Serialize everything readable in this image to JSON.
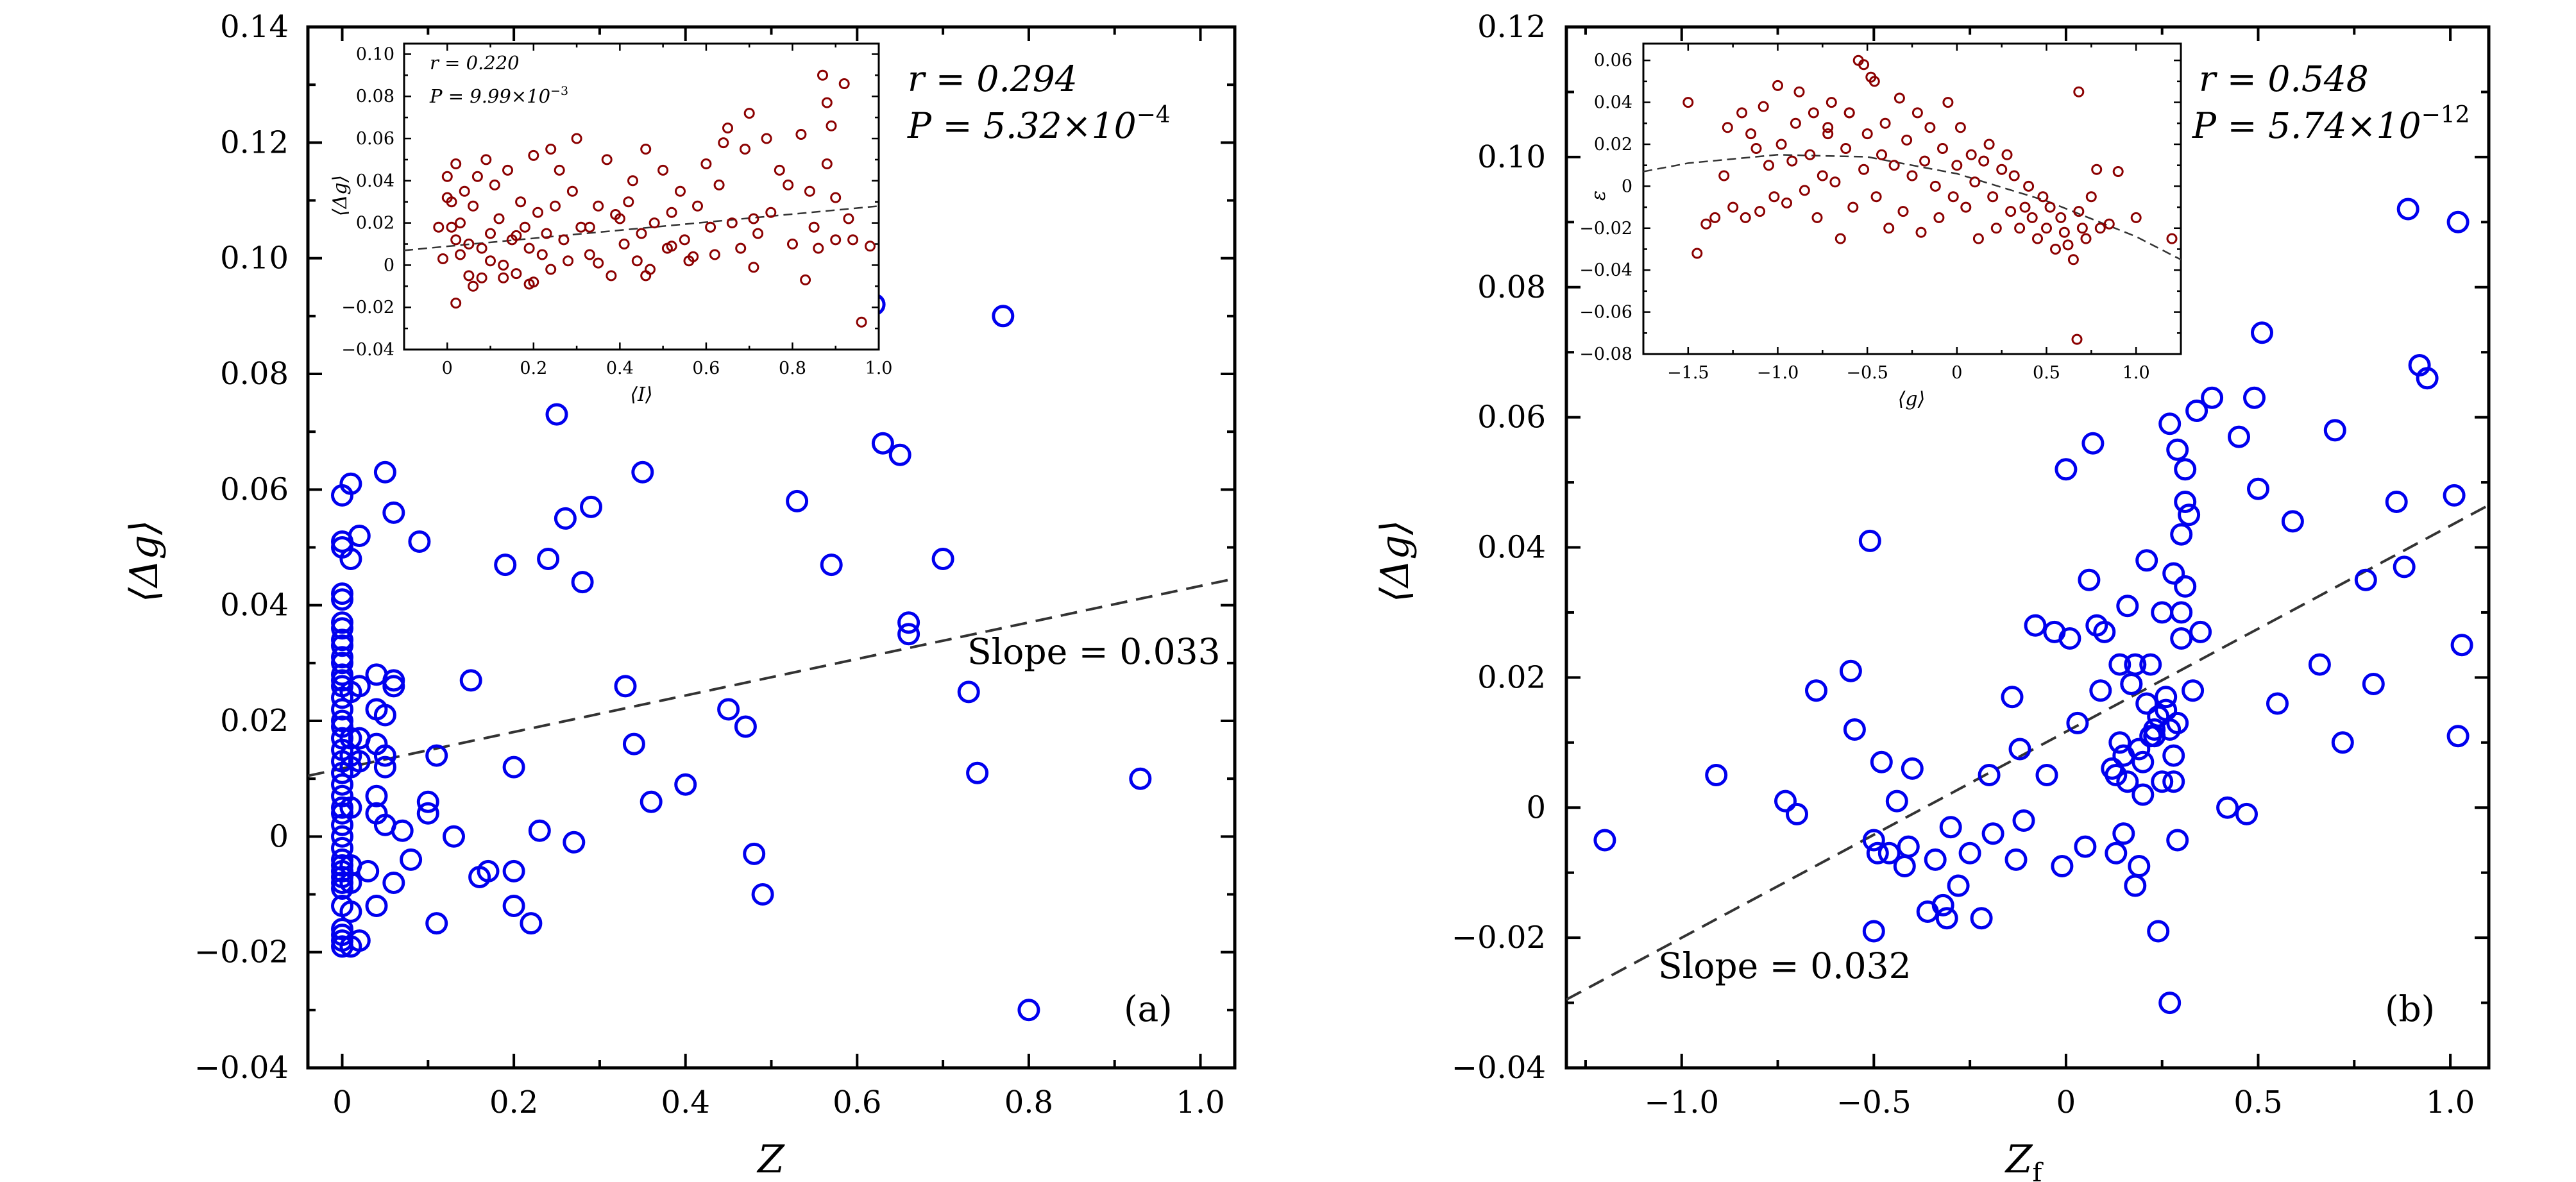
{
  "chart_data": [
    {
      "panel": "(a)",
      "type": "scatter",
      "xlabel": "Z",
      "ylabel": "⟨Δg⟩",
      "xlim": [
        -0.04,
        1.04
      ],
      "ylim": [
        -0.04,
        0.14
      ],
      "xticks": [
        0,
        0.2,
        0.4,
        0.6,
        0.8,
        1.0
      ],
      "xtick_labels": [
        "0",
        "0.2",
        "0.4",
        "0.6",
        "0.8",
        "1.0"
      ],
      "yticks": [
        -0.04,
        -0.02,
        0,
        0.02,
        0.04,
        0.06,
        0.08,
        0.1,
        0.12,
        0.14
      ],
      "ytick_labels": [
        "−0.04",
        "−0.02",
        "0",
        "0.02",
        "0.04",
        "0.06",
        "0.08",
        "0.10",
        "0.12",
        "0.14"
      ],
      "annotations": {
        "r": "r = 0.294",
        "P": "P = 5.32×10",
        "P_exp": "−4",
        "slope": "Slope = 0.033",
        "panel_label": "(a)"
      },
      "fit": {
        "slope": 0.033,
        "x": [
          -0.04,
          1.04
        ],
        "y": [
          0.0105,
          0.0446
        ]
      },
      "x": [
        0.0,
        0.0,
        0.0,
        0.0,
        0.0,
        0.0,
        0.0,
        0.0,
        0.0,
        0.0,
        0.0,
        0.0,
        0.0,
        0.0,
        0.0,
        0.0,
        0.0,
        0.0,
        0.0,
        0.0,
        0.0,
        0.0,
        0.0,
        0.0,
        0.0,
        0.0,
        0.0,
        0.0,
        0.0,
        0.0,
        0.0,
        0.0,
        0.0,
        0.0,
        0.0,
        0.0,
        0.0,
        0.0,
        0.0,
        0.0,
        0.01,
        0.01,
        0.01,
        0.01,
        0.01,
        0.01,
        0.01,
        0.01,
        0.01,
        0.01,
        0.02,
        0.02,
        0.02,
        0.02,
        0.03,
        0.04,
        0.04,
        0.04,
        0.04,
        0.04,
        0.05,
        0.05,
        0.05,
        0.06,
        0.06,
        0.06,
        0.07,
        0.08,
        0.09,
        0.1,
        0.11,
        0.15,
        0.16,
        0.17,
        0.19,
        0.2,
        0.2,
        0.22,
        0.23,
        0.24,
        0.25,
        0.26,
        0.27,
        0.28,
        0.29,
        0.33,
        0.34,
        0.35,
        0.36,
        0.4,
        0.45,
        0.47,
        0.48,
        0.49,
        0.53,
        0.57,
        0.62,
        0.63,
        0.65,
        0.66,
        0.66,
        0.7,
        0.73,
        0.74,
        0.77,
        0.8,
        0.93,
        0.01,
        0.02,
        0.05,
        0.06,
        0.13,
        0.11,
        0.1,
        0.05,
        0.04,
        0.2
      ],
      "y": [
        0.05,
        0.042,
        0.036,
        0.033,
        0.03,
        0.028,
        0.026,
        0.022,
        0.019,
        0.017,
        0.015,
        0.013,
        0.011,
        0.009,
        0.007,
        0.005,
        0.004,
        0.002,
        0.0,
        -0.002,
        -0.004,
        -0.005,
        -0.006,
        -0.007,
        -0.008,
        -0.009,
        -0.012,
        -0.016,
        -0.017,
        -0.018,
        -0.019,
        0.059,
        0.051,
        0.041,
        0.037,
        0.034,
        0.031,
        0.027,
        0.024,
        0.02,
        0.061,
        0.048,
        0.017,
        0.014,
        0.012,
        0.005,
        -0.005,
        -0.008,
        -0.013,
        -0.019,
        0.052,
        0.017,
        0.013,
        -0.018,
        -0.006,
        0.028,
        0.016,
        0.007,
        0.004,
        -0.012,
        0.063,
        0.021,
        0.002,
        0.056,
        0.027,
        -0.008,
        0.001,
        -0.004,
        0.051,
        0.004,
        -0.015,
        0.027,
        -0.007,
        -0.006,
        0.047,
        -0.006,
        -0.012,
        -0.015,
        0.001,
        0.048,
        0.073,
        0.055,
        -0.001,
        0.044,
        0.057,
        0.026,
        0.016,
        0.063,
        0.006,
        0.009,
        0.022,
        0.019,
        -0.003,
        -0.01,
        0.058,
        0.047,
        0.092,
        0.068,
        0.066,
        0.037,
        0.035,
        0.048,
        0.025,
        0.011,
        0.09,
        -0.03,
        0.01,
        0.025,
        0.026,
        0.012,
        0.026,
        0.0,
        0.014,
        0.006,
        0.014,
        0.022,
        0.012
      ]
    },
    {
      "panel": "(a) inset",
      "type": "scatter",
      "xlabel": "⟨I⟩",
      "ylabel": "⟨Δg⟩",
      "xlim": [
        -0.1,
        1.0
      ],
      "ylim": [
        -0.04,
        0.105
      ],
      "xticks": [
        0,
        0.2,
        0.4,
        0.6,
        0.8,
        1.0
      ],
      "xtick_labels": [
        "0",
        "0.2",
        "0.4",
        "0.6",
        "0.8",
        "1.0"
      ],
      "yticks": [
        -0.04,
        -0.02,
        0,
        0.02,
        0.04,
        0.06,
        0.08,
        0.1
      ],
      "ytick_labels": [
        "−0.04",
        "−0.02",
        "0",
        "0.02",
        "0.04",
        "0.06",
        "0.08",
        "0.10"
      ],
      "annotations": {
        "r": "r = 0.220",
        "P": "P = 9.99×10",
        "P_exp": "−3"
      },
      "fit": {
        "x": [
          -0.1,
          1.0
        ],
        "y": [
          0.007,
          0.028
        ]
      },
      "x": [
        -0.02,
        -0.01,
        0.0,
        0.0,
        0.01,
        0.01,
        0.02,
        0.02,
        0.03,
        0.03,
        0.04,
        0.05,
        0.05,
        0.06,
        0.07,
        0.08,
        0.08,
        0.09,
        0.1,
        0.1,
        0.11,
        0.12,
        0.13,
        0.14,
        0.15,
        0.16,
        0.17,
        0.18,
        0.19,
        0.2,
        0.2,
        0.21,
        0.22,
        0.23,
        0.24,
        0.25,
        0.26,
        0.27,
        0.28,
        0.29,
        0.3,
        0.31,
        0.33,
        0.35,
        0.37,
        0.38,
        0.4,
        0.41,
        0.42,
        0.43,
        0.44,
        0.45,
        0.46,
        0.47,
        0.48,
        0.5,
        0.51,
        0.52,
        0.54,
        0.55,
        0.56,
        0.58,
        0.6,
        0.61,
        0.62,
        0.63,
        0.65,
        0.66,
        0.68,
        0.69,
        0.7,
        0.72,
        0.74,
        0.75,
        0.77,
        0.79,
        0.8,
        0.82,
        0.84,
        0.85,
        0.86,
        0.87,
        0.88,
        0.89,
        0.9,
        0.92,
        0.94,
        0.96,
        0.98,
        0.24,
        0.06,
        0.13,
        0.33,
        0.46,
        0.57,
        0.71,
        0.83,
        0.93,
        0.16,
        0.39,
        0.64,
        0.88,
        0.02,
        0.19,
        0.35,
        0.52,
        0.71,
        0.9
      ],
      "y": [
        0.018,
        0.003,
        0.032,
        0.042,
        0.018,
        0.03,
        0.048,
        0.012,
        0.005,
        0.02,
        0.035,
        0.01,
        -0.005,
        0.028,
        0.042,
        0.008,
        -0.006,
        0.05,
        0.015,
        0.002,
        0.038,
        0.022,
        0.0,
        0.045,
        0.012,
        -0.004,
        0.03,
        0.018,
        0.008,
        0.052,
        -0.008,
        0.025,
        0.005,
        0.015,
        -0.002,
        0.028,
        0.045,
        0.012,
        0.002,
        0.035,
        0.06,
        0.018,
        0.005,
        0.028,
        0.05,
        -0.005,
        0.022,
        0.01,
        0.03,
        0.04,
        0.002,
        0.015,
        0.055,
        -0.002,
        0.02,
        0.045,
        0.008,
        0.025,
        0.035,
        0.012,
        0.002,
        0.028,
        0.048,
        0.018,
        0.005,
        0.038,
        0.065,
        0.02,
        0.008,
        0.055,
        0.072,
        0.015,
        0.06,
        0.025,
        0.045,
        0.038,
        0.01,
        0.062,
        0.035,
        0.018,
        0.008,
        0.09,
        0.048,
        0.066,
        0.032,
        0.086,
        0.012,
        -0.027,
        0.009,
        0.055,
        -0.01,
        -0.006,
        0.018,
        -0.005,
        0.004,
        -0.001,
        -0.007,
        0.022,
        0.014,
        0.024,
        0.058,
        0.077,
        -0.018,
        -0.009,
        0.001,
        0.009,
        0.022,
        0.012
      ]
    },
    {
      "panel": "(b)",
      "type": "scatter",
      "xlabel": "Z",
      "xlabel_sub": "f",
      "ylabel": "⟨Δg⟩",
      "xlim": [
        -1.3,
        1.1
      ],
      "ylim": [
        -0.04,
        0.12
      ],
      "xticks": [
        -1.0,
        -0.5,
        0,
        0.5,
        1.0
      ],
      "xtick_labels": [
        "−1.0",
        "−0.5",
        "0",
        "0.5",
        "1.0"
      ],
      "yticks": [
        -0.04,
        -0.02,
        0,
        0.02,
        0.04,
        0.06,
        0.08,
        0.1,
        0.12
      ],
      "ytick_labels": [
        "−0.04",
        "−0.02",
        "0",
        "0.02",
        "0.04",
        "0.06",
        "0.08",
        "0.10",
        "0.12"
      ],
      "annotations": {
        "r": "r = 0.548",
        "P": "P = 5.74×10",
        "P_exp": "−12",
        "slope": "Slope = 0.032",
        "panel_label": "(b)"
      },
      "fit": {
        "slope": 0.032,
        "x": [
          -1.3,
          1.1
        ],
        "y": [
          -0.0295,
          0.0465
        ]
      },
      "x": [
        -1.2,
        -0.91,
        -0.73,
        -0.7,
        -0.65,
        -0.56,
        -0.55,
        -0.51,
        -0.5,
        -0.5,
        -0.49,
        -0.48,
        -0.46,
        -0.44,
        -0.42,
        -0.41,
        -0.4,
        -0.36,
        -0.34,
        -0.32,
        -0.31,
        -0.3,
        -0.28,
        -0.25,
        -0.22,
        -0.2,
        -0.19,
        -0.14,
        -0.13,
        -0.12,
        -0.11,
        -0.08,
        -0.05,
        -0.03,
        -0.01,
        0.0,
        0.01,
        0.03,
        0.05,
        0.06,
        0.07,
        0.08,
        0.09,
        0.1,
        0.12,
        0.13,
        0.14,
        0.15,
        0.16,
        0.17,
        0.18,
        0.19,
        0.2,
        0.21,
        0.22,
        0.23,
        0.24,
        0.25,
        0.26,
        0.27,
        0.28,
        0.29,
        0.3,
        0.31,
        0.32,
        0.33,
        0.34,
        0.35,
        0.38,
        0.42,
        0.45,
        0.47,
        0.49,
        0.5,
        0.51,
        0.55,
        0.59,
        0.66,
        0.7,
        0.72,
        0.78,
        0.8,
        0.86,
        0.88,
        0.89,
        0.92,
        0.94,
        1.01,
        1.02,
        1.02,
        1.03,
        0.27,
        0.28,
        0.29,
        0.3,
        0.31,
        0.31,
        0.3,
        0.29,
        0.28,
        0.27,
        0.26,
        0.25,
        0.24,
        0.23,
        0.22,
        0.21,
        0.2,
        0.19,
        0.18,
        0.17,
        0.16,
        0.15,
        0.14,
        0.13
      ],
      "y": [
        -0.005,
        0.005,
        0.001,
        -0.001,
        0.018,
        0.021,
        0.012,
        0.041,
        -0.005,
        -0.019,
        -0.007,
        0.007,
        -0.007,
        0.001,
        -0.009,
        -0.006,
        0.006,
        -0.016,
        -0.008,
        -0.015,
        -0.017,
        -0.003,
        -0.012,
        -0.007,
        -0.017,
        0.005,
        -0.004,
        0.017,
        -0.008,
        0.009,
        -0.002,
        0.028,
        0.005,
        0.027,
        -0.009,
        0.052,
        0.026,
        0.013,
        -0.006,
        0.035,
        0.056,
        0.028,
        0.018,
        0.027,
        0.006,
        0.005,
        0.01,
        -0.004,
        0.031,
        0.019,
        -0.012,
        -0.009,
        0.002,
        0.016,
        0.022,
        0.011,
        -0.019,
        0.004,
        0.017,
        0.059,
        0.036,
        0.055,
        0.042,
        0.047,
        0.045,
        0.018,
        0.061,
        0.027,
        0.063,
        0.0,
        0.057,
        -0.001,
        0.063,
        0.049,
        0.073,
        0.016,
        0.044,
        0.022,
        0.058,
        0.01,
        0.035,
        0.019,
        0.047,
        0.037,
        0.092,
        0.068,
        0.066,
        0.048,
        0.09,
        0.011,
        0.025,
        -0.03,
        0.004,
        -0.005,
        0.03,
        0.034,
        0.052,
        0.026,
        0.013,
        0.008,
        0.012,
        0.015,
        0.03,
        0.014,
        0.012,
        0.011,
        0.038,
        0.007,
        0.009,
        0.022,
        0.019,
        0.004,
        0.008,
        0.022,
        -0.007
      ]
    },
    {
      "panel": "(b) inset",
      "type": "scatter",
      "xlabel": "⟨g⟩",
      "ylabel": "ε",
      "xlim": [
        -1.75,
        1.25
      ],
      "ylim": [
        -0.08,
        0.068
      ],
      "xticks": [
        -1.5,
        -1.0,
        -0.5,
        0,
        0.5,
        1.0
      ],
      "xtick_labels": [
        "−1.5",
        "−1.0",
        "−0.5",
        "0",
        "0.5",
        "1.0"
      ],
      "yticks": [
        -0.08,
        -0.06,
        -0.04,
        -0.02,
        0,
        0.02,
        0.04,
        0.06
      ],
      "ytick_labels": [
        "−0.08",
        "−0.06",
        "−0.04",
        "−0.02",
        "0",
        "0.02",
        "0.04",
        "0.06"
      ],
      "fit": {
        "x": [
          -1.75,
          -1.5,
          -1.0,
          -0.5,
          0.0,
          0.5,
          1.0,
          1.25
        ],
        "y": [
          0.007,
          0.011,
          0.015,
          0.014,
          0.006,
          -0.007,
          -0.024,
          -0.035
        ]
      },
      "x": [
        -1.5,
        -1.45,
        -1.4,
        -1.35,
        -1.3,
        -1.28,
        -1.25,
        -1.2,
        -1.18,
        -1.15,
        -1.12,
        -1.1,
        -1.08,
        -1.05,
        -1.02,
        -1.0,
        -0.98,
        -0.95,
        -0.92,
        -0.9,
        -0.88,
        -0.85,
        -0.82,
        -0.8,
        -0.78,
        -0.75,
        -0.72,
        -0.7,
        -0.68,
        -0.65,
        -0.62,
        -0.6,
        -0.58,
        -0.55,
        -0.52,
        -0.5,
        -0.48,
        -0.45,
        -0.42,
        -0.4,
        -0.38,
        -0.35,
        -0.32,
        -0.3,
        -0.28,
        -0.25,
        -0.22,
        -0.2,
        -0.18,
        -0.15,
        -0.12,
        -0.1,
        -0.08,
        -0.05,
        -0.02,
        0.0,
        0.02,
        0.05,
        0.08,
        0.1,
        0.12,
        0.15,
        0.18,
        0.2,
        0.22,
        0.25,
        0.28,
        0.3,
        0.32,
        0.35,
        0.38,
        0.4,
        0.42,
        0.45,
        0.48,
        0.5,
        0.52,
        0.55,
        0.58,
        0.6,
        0.62,
        0.65,
        0.68,
        0.7,
        0.72,
        0.75,
        0.78,
        0.8,
        0.85,
        0.9,
        1.0,
        1.2,
        0.68,
        0.67,
        -0.52,
        -0.46,
        -0.6,
        -0.72
      ],
      "y": [
        0.04,
        -0.032,
        -0.018,
        -0.015,
        0.005,
        0.028,
        -0.01,
        0.035,
        -0.015,
        0.025,
        0.018,
        -0.012,
        0.038,
        0.01,
        -0.005,
        0.048,
        0.02,
        -0.008,
        0.012,
        0.03,
        0.045,
        -0.002,
        0.015,
        0.035,
        -0.015,
        0.005,
        0.025,
        0.04,
        0.002,
        -0.025,
        0.018,
        0.035,
        -0.01,
        0.06,
        0.008,
        0.025,
        0.052,
        -0.005,
        0.015,
        0.03,
        -0.02,
        0.01,
        0.042,
        -0.012,
        0.022,
        0.005,
        0.035,
        -0.022,
        0.012,
        0.028,
        0.0,
        -0.015,
        0.018,
        0.04,
        -0.005,
        0.01,
        0.028,
        -0.01,
        0.015,
        0.002,
        -0.025,
        0.012,
        0.02,
        -0.005,
        -0.02,
        0.008,
        0.015,
        -0.012,
        0.005,
        -0.02,
        -0.01,
        0.0,
        -0.015,
        -0.025,
        -0.005,
        -0.02,
        -0.01,
        -0.03,
        -0.015,
        -0.022,
        -0.028,
        -0.035,
        -0.012,
        -0.02,
        -0.025,
        -0.005,
        0.008,
        -0.02,
        -0.018,
        0.007,
        -0.015,
        -0.025,
        0.045,
        -0.073,
        0.058,
        0.05,
        0.035,
        0.028
      ]
    }
  ]
}
